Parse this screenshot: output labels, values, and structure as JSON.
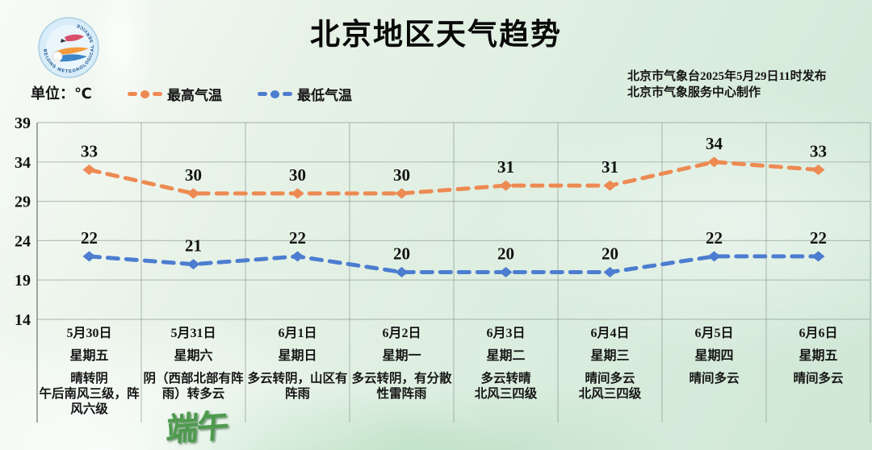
{
  "header": {
    "title": "北京地区天气趋势",
    "logo_name": "beijing-meteorological-service-logo",
    "logo_ring_text": "BEIJING METEOROLOGICAL SERVICE",
    "unit_label": "单位：℃",
    "legend": [
      {
        "label": "最高气温",
        "color": "#ED8A52"
      },
      {
        "label": "最低气温",
        "color": "#4C7DD0"
      }
    ],
    "issued_line1": "北京市气象台2025年5月29日11时发布",
    "issued_line2": "北京市气象服务中心制作"
  },
  "watermark": "端午",
  "chart_data": {
    "type": "line",
    "title": "北京地区天气趋势",
    "ylabel": "℃",
    "xlabel": "",
    "grid": true,
    "legend_position": "top-left",
    "ylim": [
      14,
      39
    ],
    "yticks": [
      39,
      34,
      29,
      24,
      19,
      14
    ],
    "categories": [
      "5月30日",
      "5月31日",
      "6月1日",
      "6月2日",
      "6月3日",
      "6月4日",
      "6月5日",
      "6月6日"
    ],
    "weekdays": [
      "星期五",
      "星期六",
      "星期日",
      "星期一",
      "星期二",
      "星期三",
      "星期四",
      "星期五"
    ],
    "weather": [
      [
        "晴转阴",
        "午后南风三级，阵",
        "风六级"
      ],
      [
        "阴（西部北部有阵",
        "雨）转多云"
      ],
      [
        "多云转阴，山区有",
        "阵雨"
      ],
      [
        "多云转阴，有分散",
        "性雷阵雨"
      ],
      [
        "多云转晴",
        "北风三四级"
      ],
      [
        "晴间多云",
        "北风三四级"
      ],
      [
        "晴间多云"
      ],
      [
        "晴间多云"
      ]
    ],
    "series": [
      {
        "name": "最高气温",
        "color": "#ED8A52",
        "values": [
          33,
          30,
          30,
          30,
          31,
          31,
          34,
          33
        ]
      },
      {
        "name": "最低气温",
        "color": "#4C7DD0",
        "values": [
          22,
          21,
          22,
          20,
          20,
          20,
          22,
          22
        ]
      }
    ],
    "colors": {
      "grid": "rgba(128,142,132,0.5)",
      "axis": "rgba(105,118,110,0.75)",
      "label": "#111111"
    }
  }
}
